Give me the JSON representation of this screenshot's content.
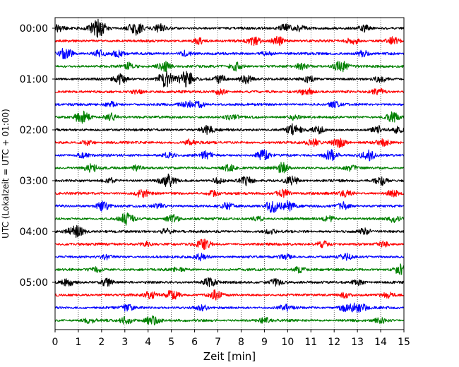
{
  "chart_data": {
    "type": "line",
    "title": "",
    "xlabel": "Zeit  [min]",
    "ylabel": "UTC (Lokalzeit = UTC + 01:00)",
    "xlim": [
      0,
      15
    ],
    "x_ticks": [
      "0",
      "1",
      "2",
      "3",
      "4",
      "5",
      "6",
      "7",
      "8",
      "9",
      "10",
      "11",
      "12",
      "13",
      "14",
      "15"
    ],
    "y_tick_labels": [
      "00:00",
      "01:00",
      "02:00",
      "03:00",
      "04:00",
      "05:00"
    ],
    "grid": "vertical dotted",
    "trace_interval_min": 15,
    "trace_count": 24,
    "color_cycle": [
      "#000000",
      "#ff0000",
      "#0000ff",
      "#008000"
    ],
    "series": [
      {
        "start": "00:00",
        "bursts": [
          [
            1.85,
            2.2
          ],
          [
            3.45,
            1.6
          ],
          [
            0.1,
            0.8
          ],
          [
            4.5,
            0.9
          ],
          [
            9.9,
            1.0
          ],
          [
            10.5,
            0.7
          ],
          [
            13.3,
            0.8
          ]
        ]
      },
      {
        "start": "00:15",
        "bursts": [
          [
            8.55,
            1.0
          ],
          [
            9.6,
            1.1
          ],
          [
            6.2,
            0.7
          ],
          [
            14.5,
            1.0
          ],
          [
            12.8,
            0.8
          ]
        ]
      },
      {
        "start": "00:30",
        "bursts": [
          [
            0.45,
            1.3
          ],
          [
            1.9,
            0.8
          ],
          [
            2.7,
            0.7
          ],
          [
            5.6,
            0.7
          ],
          [
            9.1,
            0.6
          ],
          [
            13.2,
            0.8
          ]
        ]
      },
      {
        "start": "00:45",
        "bursts": [
          [
            12.3,
            1.5
          ],
          [
            4.7,
            1.2
          ],
          [
            7.8,
            1.0
          ],
          [
            3.2,
            0.8
          ],
          [
            10.6,
            0.7
          ]
        ]
      },
      {
        "start": "01:00",
        "bursts": [
          [
            4.75,
            1.9
          ],
          [
            5.65,
            1.9
          ],
          [
            2.8,
            1.1
          ],
          [
            7.1,
            0.9
          ],
          [
            8.2,
            1.0
          ],
          [
            10.9,
            0.8
          ],
          [
            14.0,
            0.7
          ]
        ]
      },
      {
        "start": "01:15",
        "bursts": [
          [
            10.8,
            1.0
          ],
          [
            7.1,
            0.7
          ],
          [
            3.5,
            0.6
          ],
          [
            13.9,
            0.8
          ]
        ]
      },
      {
        "start": "01:30",
        "bursts": [
          [
            5.7,
            0.8
          ],
          [
            6.2,
            0.7
          ],
          [
            2.4,
            0.6
          ],
          [
            12.0,
            0.6
          ]
        ]
      },
      {
        "start": "01:45",
        "bursts": [
          [
            1.15,
            1.5
          ],
          [
            14.5,
            1.2
          ],
          [
            2.4,
            0.9
          ],
          [
            7.6,
            0.7
          ],
          [
            10.3,
            0.6
          ]
        ]
      },
      {
        "start": "02:00",
        "bursts": [
          [
            10.25,
            1.4
          ],
          [
            6.55,
            1.0
          ],
          [
            11.3,
            0.8
          ],
          [
            13.9,
            0.9
          ],
          [
            14.7,
            0.7
          ]
        ]
      },
      {
        "start": "02:15",
        "bursts": [
          [
            12.2,
            1.2
          ],
          [
            11.1,
            0.8
          ],
          [
            1.4,
            0.6
          ],
          [
            14.1,
            0.8
          ],
          [
            5.8,
            0.7
          ]
        ]
      },
      {
        "start": "02:30",
        "bursts": [
          [
            8.95,
            1.2
          ],
          [
            11.85,
            1.3
          ],
          [
            13.45,
            1.3
          ],
          [
            6.5,
            0.9
          ],
          [
            4.9,
            0.7
          ],
          [
            1.2,
            0.6
          ]
        ]
      },
      {
        "start": "02:45",
        "bursts": [
          [
            9.75,
            1.2
          ],
          [
            1.55,
            0.9
          ],
          [
            3.5,
            0.7
          ],
          [
            7.5,
            0.8
          ],
          [
            12.7,
            0.6
          ]
        ]
      },
      {
        "start": "03:00",
        "bursts": [
          [
            4.85,
            1.6
          ],
          [
            10.2,
            1.2
          ],
          [
            8.2,
            1.0
          ],
          [
            14.0,
            1.1
          ],
          [
            7.0,
            0.7
          ],
          [
            2.4,
            0.6
          ]
        ]
      },
      {
        "start": "03:15",
        "bursts": [
          [
            3.75,
            1.0
          ],
          [
            9.8,
            1.0
          ],
          [
            12.5,
            0.9
          ],
          [
            14.5,
            0.8
          ],
          [
            6.8,
            0.6
          ]
        ]
      },
      {
        "start": "03:30",
        "bursts": [
          [
            9.35,
            1.5
          ],
          [
            10.0,
            1.2
          ],
          [
            2.05,
            1.2
          ],
          [
            7.4,
            0.8
          ],
          [
            12.4,
            0.9
          ],
          [
            4.5,
            0.6
          ]
        ]
      },
      {
        "start": "03:45",
        "bursts": [
          [
            3.05,
            1.4
          ],
          [
            5.05,
            1.0
          ],
          [
            14.6,
            0.8
          ],
          [
            8.7,
            0.6
          ],
          [
            11.8,
            0.7
          ]
        ]
      },
      {
        "start": "04:00",
        "bursts": [
          [
            1.0,
            1.1
          ],
          [
            0.7,
            0.8
          ],
          [
            4.8,
            0.7
          ],
          [
            9.2,
            0.6
          ],
          [
            13.3,
            0.7
          ]
        ]
      },
      {
        "start": "04:15",
        "bursts": [
          [
            6.4,
            1.2
          ],
          [
            11.5,
            0.8
          ],
          [
            3.9,
            0.6
          ],
          [
            14.1,
            0.6
          ]
        ]
      },
      {
        "start": "04:30",
        "bursts": [
          [
            6.3,
            0.8
          ],
          [
            9.9,
            0.6
          ],
          [
            12.5,
            0.7
          ],
          [
            2.2,
            0.5
          ]
        ]
      },
      {
        "start": "04:45",
        "bursts": [
          [
            14.85,
            1.2
          ],
          [
            10.5,
            0.7
          ],
          [
            5.3,
            0.6
          ],
          [
            1.8,
            0.6
          ]
        ]
      },
      {
        "start": "05:00",
        "bursts": [
          [
            6.65,
            1.1
          ],
          [
            2.2,
            0.9
          ],
          [
            0.55,
            0.8
          ],
          [
            9.5,
            0.9
          ],
          [
            13.0,
            0.7
          ]
        ]
      },
      {
        "start": "05:15",
        "bursts": [
          [
            5.05,
            1.3
          ],
          [
            6.9,
            1.1
          ],
          [
            4.1,
            0.8
          ],
          [
            12.5,
            0.7
          ],
          [
            14.3,
            0.6
          ]
        ]
      },
      {
        "start": "05:30",
        "bursts": [
          [
            13.05,
            1.3
          ],
          [
            12.5,
            1.0
          ],
          [
            9.9,
            0.7
          ],
          [
            3.1,
            0.7
          ],
          [
            6.3,
            0.6
          ]
        ]
      },
      {
        "start": "05:45",
        "bursts": [
          [
            4.2,
            1.3
          ],
          [
            3.05,
            0.8
          ],
          [
            14.0,
            0.7
          ],
          [
            1.5,
            0.6
          ],
          [
            9.0,
            0.6
          ]
        ]
      }
    ]
  }
}
